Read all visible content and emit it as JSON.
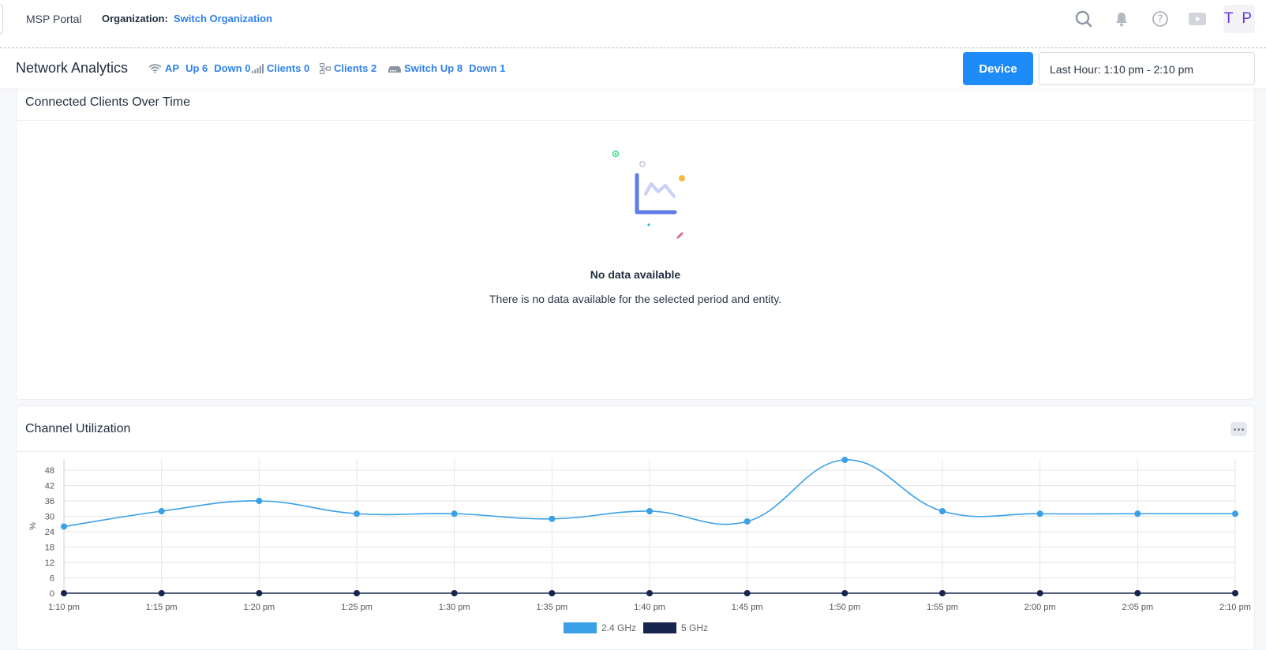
{
  "header": {
    "brand": "MSP Portal",
    "org_label": "Organization:",
    "org_link": "Switch Organization",
    "avatar_initials": "T P",
    "icons": [
      "search-icon",
      "bell-icon",
      "help-icon",
      "video-icon"
    ]
  },
  "subheader": {
    "title": "Network Analytics",
    "stats": {
      "ap_label": "AP",
      "ap_up": "Up 6",
      "ap_down": "Down 0",
      "wireless_clients": "Clients 0",
      "wired_clients": "Clients 2",
      "switch_label": "Switch",
      "switch_up": "Up 8",
      "switch_down": "Down 1"
    },
    "device_button": "Device",
    "time_range": "Last Hour: 1:10 pm - 2:10 pm"
  },
  "connected_clients": {
    "title": "Connected Clients Over Time",
    "empty_title": "No data available",
    "empty_desc": "There is no data available for the selected period and entity."
  },
  "channel_utilization": {
    "title": "Channel Utilization",
    "colors": {
      "ghz24": "#3aa0e8",
      "ghz5": "#16254d",
      "grid": "#e6e6e6"
    },
    "chart_data": {
      "type": "line",
      "title": "Channel Utilization",
      "xlabel": "",
      "ylabel": "%",
      "ylim": [
        0,
        54
      ],
      "yticks": [
        0,
        6,
        12,
        18,
        24,
        30,
        36,
        42,
        48
      ],
      "grid": true,
      "legend": "bottom",
      "categories": [
        "1:10 pm",
        "1:15 pm",
        "1:20 pm",
        "1:25 pm",
        "1:30 pm",
        "1:35 pm",
        "1:40 pm",
        "1:45 pm",
        "1:50 pm",
        "1:55 pm",
        "2:00 pm",
        "2:05 pm",
        "2:10 pm"
      ],
      "series": [
        {
          "name": "2.4 GHz",
          "values": [
            26,
            32,
            36,
            31,
            31,
            29,
            32,
            28,
            52,
            32,
            31,
            31,
            31
          ]
        },
        {
          "name": "5 GHz",
          "values": [
            0,
            0,
            0,
            0,
            0,
            0,
            0,
            0,
            0,
            0,
            0,
            0,
            0
          ]
        }
      ]
    }
  }
}
